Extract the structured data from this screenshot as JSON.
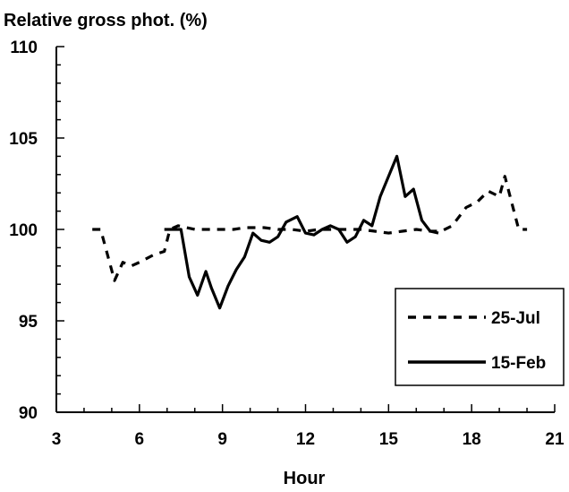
{
  "chart_data": {
    "type": "line",
    "title": "",
    "ylabel": "Relative gross phot. (%)",
    "xlabel": "Hour",
    "xlim": [
      3,
      21
    ],
    "ylim": [
      90,
      110
    ],
    "xticks": [
      3,
      6,
      9,
      12,
      15,
      18,
      21
    ],
    "yticks": [
      90,
      95,
      100,
      105,
      110
    ],
    "xtick_labels": [
      "3",
      "6",
      "9",
      "12",
      "15",
      "18",
      "21"
    ],
    "ytick_labels": [
      "90",
      "95",
      "100",
      "105",
      "110"
    ],
    "grid": false,
    "legend": {
      "placement": "bottom-right"
    },
    "series": [
      {
        "name": "25-Jul",
        "style": "dashed",
        "color": "#000000",
        "x": [
          4.3,
          4.6,
          5.1,
          5.4,
          5.7,
          6.0,
          6.5,
          6.9,
          7.1,
          7.4,
          8.0,
          8.5,
          9.0,
          9.4,
          9.8,
          10.5,
          11.0,
          11.5,
          12.0,
          12.5,
          13.0,
          13.5,
          14.0,
          14.5,
          15.0,
          15.5,
          16.0,
          16.5,
          16.9,
          17.3,
          17.8,
          18.2,
          18.6,
          19.0,
          19.2,
          19.7,
          20.0
        ],
        "y": [
          100.0,
          100.0,
          97.2,
          98.2,
          98.0,
          98.2,
          98.6,
          98.8,
          100.0,
          100.2,
          100.0,
          100.0,
          100.0,
          100.0,
          100.1,
          100.1,
          100.0,
          100.0,
          99.9,
          100.0,
          100.0,
          100.0,
          100.0,
          99.9,
          99.8,
          99.9,
          100.0,
          99.9,
          99.9,
          100.2,
          101.2,
          101.5,
          102.1,
          101.8,
          102.9,
          100.0,
          100.0
        ]
      },
      {
        "name": "15-Feb",
        "style": "solid",
        "color": "#000000",
        "x": [
          6.9,
          7.5,
          7.8,
          8.1,
          8.4,
          8.6,
          8.9,
          9.2,
          9.5,
          9.8,
          10.1,
          10.4,
          10.7,
          11.0,
          11.3,
          11.7,
          12.0,
          12.3,
          12.6,
          12.9,
          13.2,
          13.5,
          13.8,
          14.1,
          14.4,
          14.7,
          15.0,
          15.3,
          15.6,
          15.9,
          16.2,
          16.5,
          16.8
        ],
        "y": [
          100.0,
          100.0,
          97.4,
          96.4,
          97.7,
          96.8,
          95.7,
          96.9,
          97.8,
          98.5,
          99.8,
          99.4,
          99.3,
          99.6,
          100.4,
          100.7,
          99.8,
          99.7,
          100.0,
          100.2,
          100.0,
          99.3,
          99.6,
          100.5,
          100.2,
          101.8,
          102.9,
          104.0,
          101.8,
          102.2,
          100.5,
          99.9,
          99.8
        ]
      }
    ]
  }
}
